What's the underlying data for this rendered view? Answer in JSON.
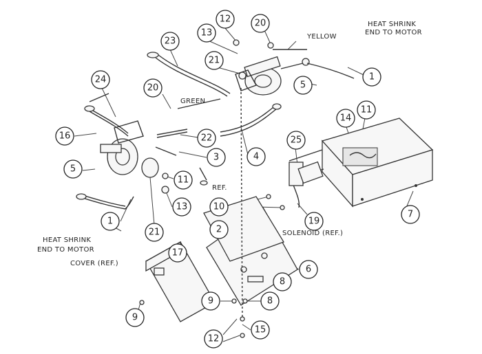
{
  "callouts": [
    {
      "id": "c23",
      "text": "23"
    },
    {
      "id": "c13a",
      "text": "13"
    },
    {
      "id": "c12top",
      "text": "12"
    },
    {
      "id": "c20a",
      "text": "20"
    },
    {
      "id": "c21a",
      "text": "21"
    },
    {
      "id": "c1top",
      "text": "1"
    },
    {
      "id": "c5a",
      "text": "5"
    },
    {
      "id": "c24",
      "text": "24"
    },
    {
      "id": "c20b",
      "text": "20"
    },
    {
      "id": "c16",
      "text": "16"
    },
    {
      "id": "c22",
      "text": "22"
    },
    {
      "id": "c3",
      "text": "3"
    },
    {
      "id": "c4",
      "text": "4"
    },
    {
      "id": "c25",
      "text": "25"
    },
    {
      "id": "c11a",
      "text": "11"
    },
    {
      "id": "c14",
      "text": "14"
    },
    {
      "id": "c5b",
      "text": "5"
    },
    {
      "id": "c11b",
      "text": "11"
    },
    {
      "id": "c13b",
      "text": "13"
    },
    {
      "id": "c21b",
      "text": "21"
    },
    {
      "id": "c10",
      "text": "10"
    },
    {
      "id": "c2",
      "text": "2"
    },
    {
      "id": "c19",
      "text": "19"
    },
    {
      "id": "c7",
      "text": "7"
    },
    {
      "id": "c1bot",
      "text": "1"
    },
    {
      "id": "c6",
      "text": "6"
    },
    {
      "id": "c17",
      "text": "17"
    },
    {
      "id": "c8a",
      "text": "8"
    },
    {
      "id": "c9a",
      "text": "9"
    },
    {
      "id": "c8b",
      "text": "8"
    },
    {
      "id": "c9b",
      "text": "9"
    },
    {
      "id": "c15",
      "text": "15"
    },
    {
      "id": "c12bot",
      "text": "12"
    }
  ],
  "labels": {
    "yellow": "YELLOW",
    "green": "GREEN",
    "heat_shrink_top_1": "HEAT SHRINK",
    "heat_shrink_top_2": "END TO MOTOR",
    "heat_shrink_left_1": "HEAT SHRINK",
    "heat_shrink_left_2": "END TO MOTOR",
    "cover_ref": "COVER (REF.)",
    "solenoid_ref": "SOLENOID (REF.)",
    "ref": "REF."
  }
}
